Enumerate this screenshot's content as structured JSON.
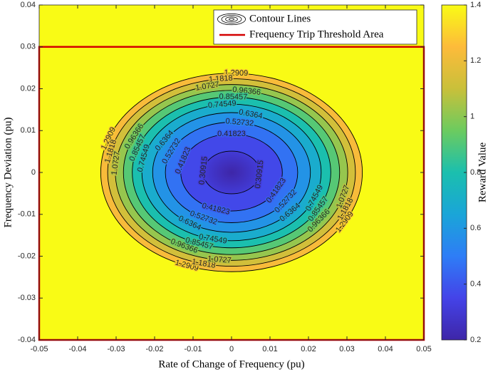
{
  "chart_data": {
    "type": "contour",
    "x_label": "Rate of Change of Frequency (pu)",
    "y_label": "Frequency Deviation (pu)",
    "xlim": [
      -0.05,
      0.05
    ],
    "xticks": [
      -0.05,
      -0.04,
      -0.03,
      -0.02,
      -0.01,
      0,
      0.01,
      0.02,
      0.03,
      0.04,
      0.05
    ],
    "ylim": [
      -0.04,
      0.04
    ],
    "yticks": [
      -0.04,
      -0.03,
      -0.02,
      -0.01,
      0,
      0.01,
      0.02,
      0.03,
      0.04
    ],
    "center": [
      0,
      0
    ],
    "contour_name": "Contour Lines",
    "contour_color": "#000000",
    "contours": [
      {
        "level": 1.2909,
        "x_radius": 0.034,
        "y_radius": 0.0237
      },
      {
        "level": 1.1818,
        "x_radius": 0.0322,
        "y_radius": 0.0224
      },
      {
        "level": 1.0727,
        "x_radius": 0.0302,
        "y_radius": 0.021
      },
      {
        "level": 0.96366,
        "x_radius": 0.0281,
        "y_radius": 0.0196
      },
      {
        "level": 0.85457,
        "x_radius": 0.0258,
        "y_radius": 0.018
      },
      {
        "level": 0.74549,
        "x_radius": 0.0233,
        "y_radius": 0.0163
      },
      {
        "level": 0.6364,
        "x_radius": 0.0205,
        "y_radius": 0.0143
      },
      {
        "level": 0.52732,
        "x_radius": 0.0172,
        "y_radius": 0.012
      },
      {
        "level": 0.41823,
        "x_radius": 0.0132,
        "y_radius": 0.0092
      },
      {
        "level": 0.30915,
        "x_radius": 0.0073,
        "y_radius": 0.0051
      }
    ],
    "threshold_area": {
      "name": "Frequency Trip Threshold Area",
      "x_range": [
        -0.05,
        0.05
      ],
      "y_range": [
        -0.04,
        0.03
      ],
      "color": "#d40000"
    },
    "legend": "upper right",
    "colorbar": {
      "label": "Reward Value",
      "clim": [
        0.2,
        1.4
      ],
      "ticks": [
        0.2,
        0.4,
        0.6,
        0.8,
        1,
        1.2,
        1.4
      ],
      "colormap": [
        "#3e26a8",
        "#4443e8",
        "#2e7df6",
        "#1aa5d8",
        "#1bbfae",
        "#6ccb5f",
        "#c9c03a",
        "#fdbb3a",
        "#f9fb15"
      ]
    }
  }
}
